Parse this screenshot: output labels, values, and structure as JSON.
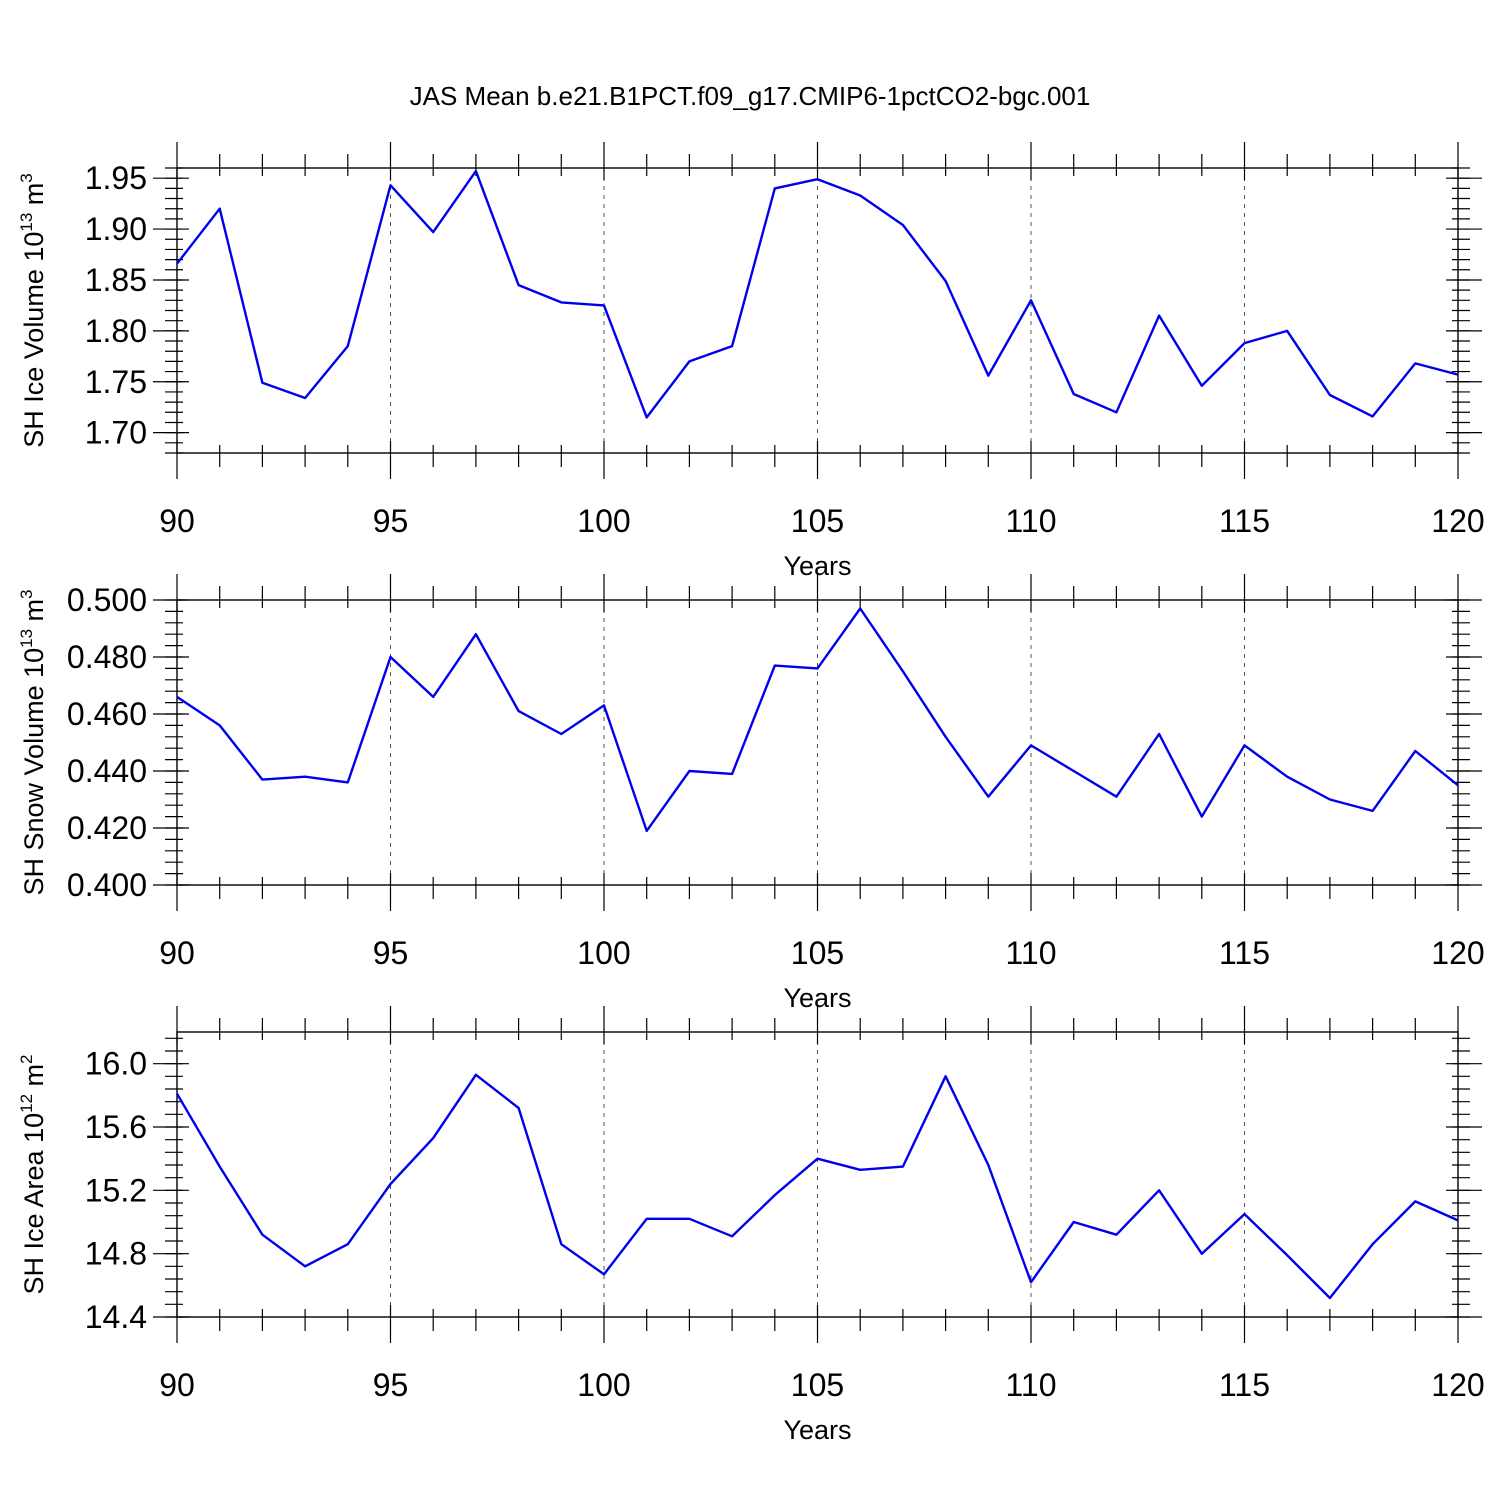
{
  "figure": {
    "title": "JAS Mean b.e21.B1PCT.f09_g17.CMIP6-1pctCO2-bgc.001"
  },
  "colors": {
    "series": "#0000ee",
    "axis": "#000000",
    "grid": "#555555"
  },
  "chart_data": [
    {
      "type": "line",
      "xlabel": "Years",
      "ylabel": {
        "text": "SH Ice Volume 10",
        "sup": "13",
        "unit": " m",
        "unit_sup": "3"
      },
      "xlim": [
        90,
        120
      ],
      "ylim": [
        1.68,
        1.96
      ],
      "x_ticks": [
        90,
        95,
        100,
        105,
        110,
        115,
        120
      ],
      "y_ticks": [
        1.7,
        1.75,
        1.8,
        1.85,
        1.9,
        1.95
      ],
      "y_tick_labels": [
        "1.70",
        "1.75",
        "1.80",
        "1.85",
        "1.90",
        "1.95"
      ],
      "y_minor_step": 0.01,
      "grid": "vertical dashed at major x ticks",
      "x": [
        90,
        91,
        92,
        93,
        94,
        95,
        96,
        97,
        98,
        99,
        100,
        101,
        102,
        103,
        104,
        105,
        106,
        107,
        108,
        109,
        110,
        111,
        112,
        113,
        114,
        115,
        116,
        117,
        118,
        119,
        120
      ],
      "y": [
        1.866,
        1.92,
        1.749,
        1.734,
        1.785,
        1.943,
        1.897,
        1.957,
        1.845,
        1.828,
        1.825,
        1.715,
        1.77,
        1.785,
        1.94,
        1.949,
        1.933,
        1.904,
        1.849,
        1.756,
        1.83,
        1.738,
        1.72,
        1.815,
        1.746,
        1.788,
        1.8,
        1.737,
        1.716,
        1.768,
        1.757
      ]
    },
    {
      "type": "line",
      "xlabel": "Years",
      "ylabel": {
        "text": "SH Snow Volume 10",
        "sup": "13",
        "unit": " m",
        "unit_sup": "3"
      },
      "xlim": [
        90,
        120
      ],
      "ylim": [
        0.4,
        0.5
      ],
      "x_ticks": [
        90,
        95,
        100,
        105,
        110,
        115,
        120
      ],
      "y_ticks": [
        0.4,
        0.42,
        0.44,
        0.46,
        0.48,
        0.5
      ],
      "y_tick_labels": [
        "0.400",
        "0.420",
        "0.440",
        "0.460",
        "0.480",
        "0.500"
      ],
      "y_minor_step": 0.004,
      "grid": "vertical dashed at major x ticks",
      "x": [
        90,
        91,
        92,
        93,
        94,
        95,
        96,
        97,
        98,
        99,
        100,
        101,
        102,
        103,
        104,
        105,
        106,
        107,
        108,
        109,
        110,
        111,
        112,
        113,
        114,
        115,
        116,
        117,
        118,
        119,
        120
      ],
      "y": [
        0.466,
        0.456,
        0.437,
        0.438,
        0.436,
        0.48,
        0.466,
        0.488,
        0.461,
        0.453,
        0.463,
        0.419,
        0.44,
        0.439,
        0.477,
        0.476,
        0.497,
        0.475,
        0.452,
        0.431,
        0.449,
        0.44,
        0.431,
        0.453,
        0.424,
        0.449,
        0.438,
        0.43,
        0.426,
        0.447,
        0.435
      ]
    },
    {
      "type": "line",
      "xlabel": "Years",
      "ylabel": {
        "text": "SH Ice Area 10",
        "sup": "12",
        "unit": " m",
        "unit_sup": "2"
      },
      "xlim": [
        90,
        120
      ],
      "ylim": [
        14.4,
        16.2
      ],
      "x_ticks": [
        90,
        95,
        100,
        105,
        110,
        115,
        120
      ],
      "y_ticks": [
        14.4,
        14.8,
        15.2,
        15.6,
        16.0
      ],
      "y_tick_labels": [
        "14.4",
        "14.8",
        "15.2",
        "15.6",
        "16.0"
      ],
      "y_minor_step": 0.08,
      "grid": "vertical dashed at major x ticks",
      "x": [
        90,
        91,
        92,
        93,
        94,
        95,
        96,
        97,
        98,
        99,
        100,
        101,
        102,
        103,
        104,
        105,
        106,
        107,
        108,
        109,
        110,
        111,
        112,
        113,
        114,
        115,
        116,
        117,
        118,
        119,
        120
      ],
      "y": [
        15.81,
        15.35,
        14.92,
        14.72,
        14.86,
        15.24,
        15.53,
        15.93,
        15.72,
        14.86,
        14.67,
        15.02,
        15.02,
        14.91,
        15.17,
        15.4,
        15.33,
        15.35,
        15.92,
        15.36,
        14.62,
        15.0,
        14.92,
        15.2,
        14.8,
        15.05,
        14.79,
        14.52,
        14.86,
        15.13,
        15.01
      ]
    }
  ]
}
